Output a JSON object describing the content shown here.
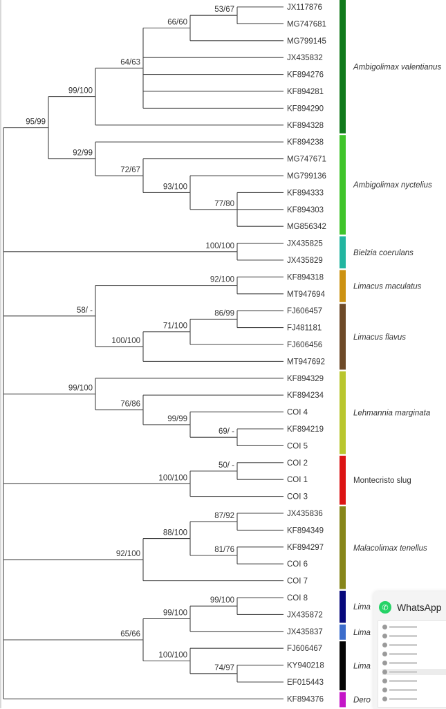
{
  "tips": [
    "JX117876",
    "MG747681",
    "MG799145",
    "JX435832",
    "KF894276",
    "KF894281",
    "KF894290",
    "KF894328",
    "KF894238",
    "MG747671",
    "MG799136",
    "KF894333",
    "KF894303",
    "MG856342",
    "JX435825",
    "JX435829",
    "KF894318",
    "MT947694",
    "FJ606457",
    "FJ481181",
    "FJ606456",
    "MT947692",
    "KF894329",
    "KF894234",
    "COI 4",
    "KF894219",
    "COI 5",
    "COI 2",
    "COI 1",
    "COI 3",
    "JX435836",
    "KF894349",
    "KF894297",
    "COI 6",
    "COI 7",
    "COI 8",
    "JX435872",
    "JX435837",
    "FJ606467",
    "KY940218",
    "EF015443",
    "KF894376"
  ],
  "tree": {
    "name": "root",
    "children": [
      {
        "support": "95/99",
        "children": [
          {
            "support": "99/100",
            "children": [
              {
                "support": "64/63",
                "children": [
                  {
                    "support": "66/60",
                    "children": [
                      {
                        "support": "53/67",
                        "children": [
                          {
                            "tip": 0
                          },
                          {
                            "tip": 1
                          }
                        ]
                      },
                      {
                        "tip": 2
                      }
                    ]
                  },
                  {
                    "tip": 3
                  },
                  {
                    "tip": 4
                  },
                  {
                    "tip": 5
                  },
                  {
                    "tip": 6
                  }
                ]
              },
              {
                "tip": 7
              }
            ]
          },
          {
            "support": "92/99",
            "children": [
              {
                "tip": 8
              },
              {
                "support": "72/67",
                "children": [
                  {
                    "tip": 9
                  },
                  {
                    "support": "93/100",
                    "children": [
                      {
                        "tip": 10
                      },
                      {
                        "support": "77/80",
                        "children": [
                          {
                            "tip": 11
                          },
                          {
                            "tip": 12
                          },
                          {
                            "tip": 13
                          }
                        ]
                      }
                    ]
                  }
                ]
              }
            ]
          }
        ]
      },
      {
        "support": "100/100",
        "depth": 5,
        "children": [
          {
            "tip": 14
          },
          {
            "tip": 15
          }
        ]
      },
      {
        "support": "58/ -",
        "depth": 2,
        "children": [
          {
            "support": "92/100",
            "depth": 5,
            "children": [
              {
                "tip": 16
              },
              {
                "tip": 17
              }
            ]
          },
          {
            "support": "100/100",
            "children": [
              {
                "support": "71/100",
                "children": [
                  {
                    "support": "86/99",
                    "children": [
                      {
                        "tip": 18
                      },
                      {
                        "tip": 19
                      }
                    ]
                  },
                  {
                    "tip": 20
                  }
                ]
              },
              {
                "tip": 21
              }
            ]
          }
        ]
      },
      {
        "support": "99/100",
        "depth": 2,
        "children": [
          {
            "tip": 22
          },
          {
            "support": "76/86",
            "children": [
              {
                "tip": 23
              },
              {
                "support": "99/99",
                "children": [
                  {
                    "tip": 24
                  },
                  {
                    "support": "69/ -",
                    "children": [
                      {
                        "tip": 25
                      },
                      {
                        "tip": 26
                      }
                    ]
                  }
                ]
              }
            ]
          }
        ]
      },
      {
        "support": "100/100",
        "depth": 4,
        "children": [
          {
            "support": "50/ -",
            "children": [
              {
                "tip": 27
              },
              {
                "tip": 28
              }
            ]
          },
          {
            "tip": 29
          }
        ]
      },
      {
        "support": "92/100",
        "depth": 3,
        "children": [
          {
            "support": "88/100",
            "children": [
              {
                "support": "87/92",
                "children": [
                  {
                    "tip": 30
                  },
                  {
                    "tip": 31
                  }
                ]
              },
              {
                "support": "81/76",
                "children": [
                  {
                    "tip": 32
                  },
                  {
                    "tip": 33
                  }
                ]
              }
            ]
          },
          {
            "tip": 34
          }
        ]
      },
      {
        "support": "65/66",
        "depth": 3,
        "children": [
          {
            "support": "99/100",
            "children": [
              {
                "support": "99/100",
                "children": [
                  {
                    "tip": 35
                  },
                  {
                    "tip": 36
                  }
                ]
              },
              {
                "tip": 37
              }
            ]
          },
          {
            "support": "100/100",
            "children": [
              {
                "tip": 38
              },
              {
                "support": "74/97",
                "children": [
                  {
                    "tip": 39
                  },
                  {
                    "tip": 40
                  }
                ]
              }
            ]
          }
        ]
      },
      {
        "tip": 41
      }
    ]
  },
  "clades": [
    {
      "label": "Ambigolimax valentianus",
      "from": 0,
      "to": 7,
      "color": "#117a1b",
      "italic": true
    },
    {
      "label": "Ambigolimax nyctelius",
      "from": 8,
      "to": 13,
      "color": "#3fc42a",
      "italic": true
    },
    {
      "label": "Bielzia coerulans",
      "from": 14,
      "to": 15,
      "color": "#22b5a0",
      "italic": true
    },
    {
      "label": "Limacus maculatus",
      "from": 16,
      "to": 17,
      "color": "#cc9212",
      "italic": true
    },
    {
      "label": "Limacus flavus",
      "from": 18,
      "to": 21,
      "color": "#6e4a28",
      "italic": true
    },
    {
      "label": "Lehmannia marginata",
      "from": 22,
      "to": 26,
      "color": "#b9c62e",
      "italic": true
    },
    {
      "label": "Montecristo slug",
      "from": 27,
      "to": 29,
      "color": "#dc1414",
      "italic": false
    },
    {
      "label": "Malacolimax tenellus",
      "from": 30,
      "to": 34,
      "color": "#87861a",
      "italic": true
    },
    {
      "label": "Lima",
      "from": 35,
      "to": 36,
      "color": "#07097c",
      "italic": true
    },
    {
      "label": "Lima",
      "from": 37,
      "to": 37,
      "color": "#3b6ccb",
      "italic": true
    },
    {
      "label": "Lima",
      "from": 38,
      "to": 40,
      "color": "#050505",
      "italic": true
    },
    {
      "label": "Dero",
      "from": 41,
      "to": 41,
      "color": "#c415c7",
      "italic": true
    }
  ],
  "notification": {
    "app_name": "WhatsApp",
    "icon": "whatsapp-icon"
  }
}
